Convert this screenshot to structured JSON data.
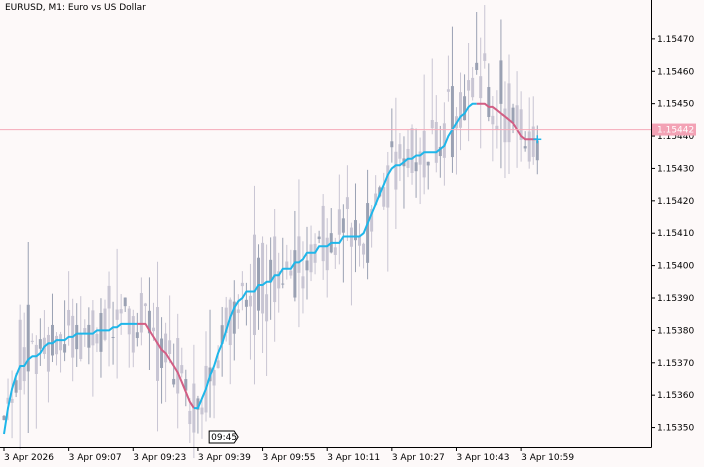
{
  "header": {
    "symbol_timeframe": "EURUSD, M1:",
    "description": "Euro vs US Dollar"
  },
  "colors": {
    "background": "#fdf9f9",
    "axis": "#000000",
    "candle_body_light": "#c8c5d3",
    "candle_body_dark": "#9aa1b3",
    "ma_up": "#1fb6e9",
    "ma_down": "#d25e84",
    "bid_line": "#f4aab9",
    "price_label_bg": "#f3a2b5",
    "price_label_text": "#ffffff"
  },
  "chart_data": {
    "type": "candlestick",
    "title": "",
    "ylim": [
      1.15344,
      1.15482
    ],
    "y_ticks": [
      "1.15350",
      "1.15360",
      "1.15370",
      "1.15380",
      "1.15390",
      "1.15400",
      "1.15410",
      "1.15420",
      "1.15430",
      "1.15440",
      "1.15450",
      "1.15460",
      "1.15470"
    ],
    "x_tick_labels": [
      "3 Apr 2026",
      "3 Apr 09:07",
      "3 Apr 09:23",
      "3 Apr 09:39",
      "3 Apr 09:55",
      "3 Apr 10:11",
      "3 Apr 10:27",
      "3 Apr 10:43",
      "3 Apr 10:59"
    ],
    "x_tick_bar_index": [
      0,
      16,
      32,
      48,
      64,
      80,
      96,
      112,
      128
    ],
    "bar_count": 133,
    "current_price": "1.15442",
    "current_price_value": 1.15442,
    "time_marker": "09:45",
    "time_marker_bar_index": 54,
    "moving_average": [
      1.15348,
      1.15356,
      1.15362,
      1.15366,
      1.15369,
      1.15369,
      1.15371,
      1.15372,
      1.15372,
      1.15373,
      1.15375,
      1.15376,
      1.15376,
      1.15377,
      1.15377,
      1.15377,
      1.15378,
      1.15378,
      1.15379,
      1.15379,
      1.15379,
      1.15379,
      1.15379,
      1.1538,
      1.1538,
      1.1538,
      1.1538,
      1.15381,
      1.15381,
      1.15382,
      1.15382,
      1.15382,
      1.15382,
      1.15382,
      1.15382,
      1.15382,
      1.1538,
      1.15378,
      1.15376,
      1.15374,
      1.15373,
      1.15371,
      1.15369,
      1.15367,
      1.15364,
      1.15361,
      1.15358,
      1.15356,
      1.15356,
      1.15359,
      1.15362,
      1.15366,
      1.15369,
      1.15373,
      1.15376,
      1.1538,
      1.15384,
      1.15387,
      1.15389,
      1.1539,
      1.15392,
      1.15392,
      1.15392,
      1.15394,
      1.15394,
      1.15395,
      1.15395,
      1.15397,
      1.15397,
      1.15399,
      1.15399,
      1.15399,
      1.15401,
      1.15401,
      1.15402,
      1.15404,
      1.15404,
      1.15404,
      1.15406,
      1.15406,
      1.15406,
      1.15407,
      1.15407,
      1.15407,
      1.15409,
      1.15409,
      1.15409,
      1.15409,
      1.15409,
      1.1541,
      1.15413,
      1.15416,
      1.15419,
      1.15422,
      1.15425,
      1.15428,
      1.1543,
      1.15431,
      1.15431,
      1.15432,
      1.15433,
      1.15433,
      1.15434,
      1.15434,
      1.15435,
      1.15435,
      1.15435,
      1.15435,
      1.15436,
      1.15437,
      1.1544,
      1.15442,
      1.15444,
      1.15446,
      1.15447,
      1.15449,
      1.1545,
      1.1545,
      1.1545,
      1.1545,
      1.15449,
      1.15449,
      1.15448,
      1.15447,
      1.15446,
      1.15445,
      1.15444,
      1.15442,
      1.1544,
      1.15439,
      1.15439,
      1.15439,
      1.15439
    ],
    "ma_color_segments": [
      {
        "from": 0,
        "to": 33,
        "trend": "up"
      },
      {
        "from": 33,
        "to": 47,
        "trend": "down"
      },
      {
        "from": 47,
        "to": 117,
        "trend": "up"
      },
      {
        "from": 117,
        "to": 132,
        "trend": "down"
      }
    ]
  }
}
